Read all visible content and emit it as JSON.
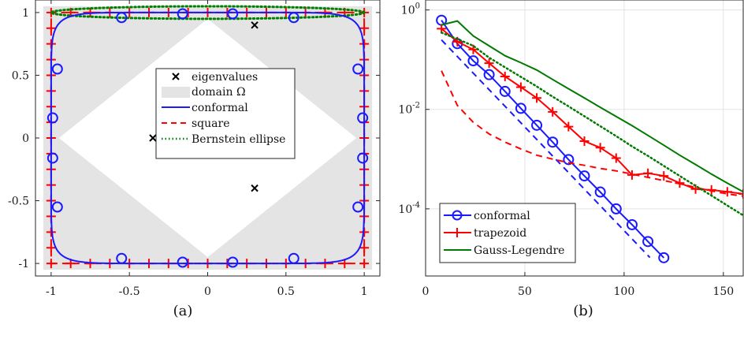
{
  "charts": [
    {
      "caption": "(a)",
      "chart_data": {
        "type": "line",
        "title": "",
        "xlabel": "",
        "ylabel": "",
        "xlim": [
          -1.1,
          1.1
        ],
        "ylim": [
          -1.1,
          1.1
        ],
        "xticks": [
          -1,
          -0.5,
          0,
          0.5,
          1
        ],
        "xtick_labels": [
          "-1",
          "-0.5",
          "0",
          "0.5",
          "1"
        ],
        "yticks": [
          1,
          0.5,
          0,
          -0.5,
          -1
        ],
        "ytick_labels": [
          "1",
          "0.5",
          "0",
          "-0.5",
          "-1"
        ],
        "grid": false,
        "legend_position": "center-right",
        "domain": {
          "outer_square": [
            [
              -1.05,
              -1.05
            ],
            [
              1.05,
              -1.05
            ],
            [
              1.05,
              1.05
            ],
            [
              -1.05,
              1.05
            ]
          ],
          "inner_hole": [
            [
              -0.95,
              0
            ],
            [
              0,
              0.95
            ],
            [
              0.95,
              0
            ],
            [
              0,
              -0.95
            ]
          ]
        },
        "series": [
          {
            "name": "eigenvalues",
            "kind": "markers",
            "marker": "x",
            "color": "#000000",
            "points": [
              [
                0.3,
                0.9
              ],
              [
                -0.35,
                0.0
              ],
              [
                0.3,
                -0.4
              ]
            ]
          },
          {
            "name": "domain Ω",
            "kind": "region",
            "color": "#e4e4e4"
          },
          {
            "name": "conformal",
            "kind": "line",
            "style": "solid",
            "color": "#1a1aff",
            "superellipse_exponent": 10,
            "radius": 1.0,
            "circle_markers": [
              [
                -0.55,
                0.96
              ],
              [
                -0.16,
                0.99
              ],
              [
                0.16,
                0.99
              ],
              [
                0.55,
                0.96
              ],
              [
                0.96,
                0.55
              ],
              [
                0.99,
                0.16
              ],
              [
                0.99,
                -0.16
              ],
              [
                0.96,
                -0.55
              ],
              [
                0.55,
                -0.96
              ],
              [
                0.16,
                -0.99
              ],
              [
                -0.16,
                -0.99
              ],
              [
                -0.55,
                -0.96
              ],
              [
                -0.96,
                -0.55
              ],
              [
                -0.99,
                -0.16
              ],
              [
                -0.99,
                0.16
              ],
              [
                -0.96,
                0.55
              ]
            ]
          },
          {
            "name": "square",
            "kind": "line",
            "style": "dashed",
            "color": "#ff0000",
            "corners": [
              [
                -1,
                -1
              ],
              [
                1,
                -1
              ],
              [
                1,
                1
              ],
              [
                -1,
                1
              ]
            ],
            "plus_positions": [
              -1,
              -0.875,
              -0.75,
              -0.625,
              -0.5,
              -0.375,
              -0.25,
              -0.125,
              0,
              0.125,
              0.25,
              0.375,
              0.5,
              0.625,
              0.75,
              0.875,
              1
            ]
          },
          {
            "name": "Bernstein ellipse",
            "kind": "line",
            "style": "dotted",
            "color": "#008000",
            "center": [
              0,
              1
            ],
            "semi_axes": [
              1.0,
              0.05
            ]
          }
        ]
      }
    },
    {
      "caption": "(b)",
      "chart_data": {
        "type": "line",
        "title": "",
        "xlabel": "",
        "ylabel": "",
        "xlim": [
          0,
          160
        ],
        "ylim_log10": [
          -5.35,
          0.2
        ],
        "y_scale": "log",
        "xticks": [
          0,
          50,
          100,
          150
        ],
        "xtick_labels": [
          "0",
          "50",
          "100",
          "150"
        ],
        "yticks_log10": [
          0,
          -2,
          -4
        ],
        "ytick_labels": [
          {
            "base": "10",
            "exp": "0"
          },
          {
            "base": "10",
            "exp": "-2"
          },
          {
            "base": "10",
            "exp": "-4"
          }
        ],
        "grid": true,
        "legend_position": "bottom-left",
        "series": [
          {
            "name": "conformal",
            "style": "solid",
            "color": "#1a1aff",
            "marker": "o",
            "x": [
              8,
              16,
              24,
              32,
              40,
              48,
              56,
              64,
              72,
              80,
              88,
              96,
              104,
              112,
              120
            ],
            "y": [
              0.62,
              0.21,
              0.095,
              0.05,
              0.023,
              0.0105,
              0.0048,
              0.0022,
              0.00098,
              0.00046,
              0.000218,
              0.0001,
              4.8e-05,
              2.2e-05,
              1.04e-05
            ]
          },
          {
            "name": "",
            "style": "dashed",
            "color": "#1a1aff",
            "x": [
              8,
              113
            ],
            "y": [
              0.25,
              1.05e-05
            ]
          },
          {
            "name": "trapezoid",
            "style": "solid",
            "color": "#ff0000",
            "marker": "+",
            "x": [
              8,
              16,
              24,
              32,
              40,
              48,
              56,
              64,
              72,
              80,
              88,
              96,
              104,
              112,
              120,
              128,
              136,
              144,
              152,
              160
            ],
            "y": [
              0.42,
              0.23,
              0.16,
              0.085,
              0.046,
              0.028,
              0.017,
              0.0089,
              0.0045,
              0.0023,
              0.0017,
              0.00105,
              0.00048,
              0.00052,
              0.00046,
              0.00033,
              0.00025,
              0.00024,
              0.00022,
              0.0002
            ]
          },
          {
            "name": "",
            "style": "dashed",
            "color": "#ff0000",
            "x": [
              8,
              16,
              24,
              32,
              40,
              48,
              56,
              64,
              72,
              80,
              88,
              96,
              104,
              112,
              120,
              128,
              136,
              144,
              152,
              160
            ],
            "y": [
              0.06,
              0.012,
              0.0055,
              0.0032,
              0.0022,
              0.0016,
              0.0012,
              0.001,
              0.00085,
              0.00075,
              0.00065,
              0.00058,
              0.0005,
              0.00043,
              0.00037,
              0.00032,
              0.00027,
              0.00023,
              0.0002,
              0.00018
            ]
          },
          {
            "name": "Gauss-Legendre",
            "style": "solid",
            "color": "#007a00",
            "x": [
              8,
              16,
              24,
              32,
              40,
              48,
              56,
              64,
              72,
              80,
              88,
              96,
              104,
              112,
              120,
              128,
              136,
              144,
              152,
              160
            ],
            "y": [
              0.5,
              0.6,
              0.3,
              0.19,
              0.12,
              0.087,
              0.062,
              0.04,
              0.026,
              0.017,
              0.011,
              0.0072,
              0.0047,
              0.003,
              0.0019,
              0.0012,
              0.00078,
              0.0005,
              0.00033,
              0.00022
            ]
          },
          {
            "name": "",
            "style": "dotted",
            "color": "#007a00",
            "x": [
              8,
              16,
              24,
              32,
              40,
              48,
              56,
              64,
              72,
              80,
              88,
              96,
              104,
              112,
              120,
              128,
              136,
              144,
              152,
              160
            ],
            "y": [
              0.35,
              0.26,
              0.19,
              0.11,
              0.07,
              0.045,
              0.029,
              0.018,
              0.0115,
              0.0073,
              0.0046,
              0.0029,
              0.0018,
              0.00116,
              0.00073,
              0.00046,
              0.00029,
              0.000185,
              0.000117,
              7.4e-05
            ]
          }
        ]
      }
    }
  ]
}
